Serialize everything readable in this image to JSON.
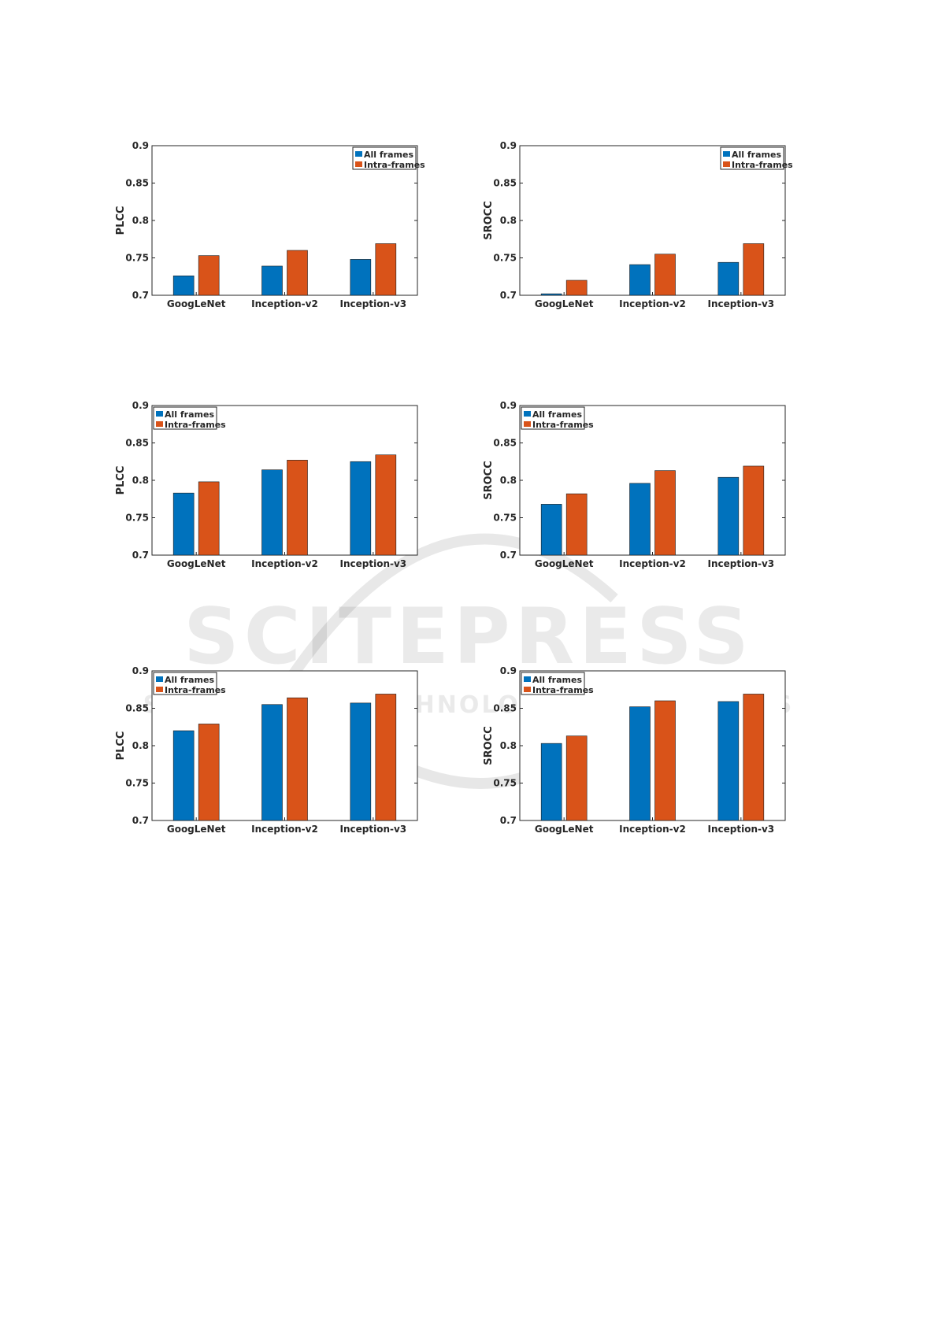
{
  "watermark": {
    "main": "SCITEPRESS",
    "sub": "SCIENCE AND TECHNOLOGY PUBLICATIONS"
  },
  "colors": {
    "all_frames": "#0072BD",
    "intra_frames": "#D95319",
    "axis": "#262626"
  },
  "chart_data": [
    {
      "type": "bar",
      "categories": [
        "GoogLeNet",
        "Inception-v2",
        "Inception-v3"
      ],
      "series": [
        {
          "name": "All frames",
          "values": [
            0.726,
            0.739,
            0.748
          ]
        },
        {
          "name": "Intra-frames",
          "values": [
            0.753,
            0.76,
            0.769
          ]
        }
      ],
      "ylabel": "PLCC",
      "ylim": [
        0.7,
        0.9
      ],
      "yticks": [
        "0.7",
        "0.75",
        "0.8",
        "0.85",
        "0.9"
      ],
      "legend": "top-right"
    },
    {
      "type": "bar",
      "categories": [
        "GoogLeNet",
        "Inception-v2",
        "Inception-v3"
      ],
      "series": [
        {
          "name": "All frames",
          "values": [
            0.702,
            0.741,
            0.744
          ]
        },
        {
          "name": "Intra-frames",
          "values": [
            0.72,
            0.755,
            0.769
          ]
        }
      ],
      "ylabel": "SROCC",
      "ylim": [
        0.7,
        0.9
      ],
      "yticks": [
        "0.7",
        "0.75",
        "0.8",
        "0.85",
        "0.9"
      ],
      "legend": "top-right"
    },
    {
      "type": "bar",
      "categories": [
        "GoogLeNet",
        "Inception-v2",
        "Inception-v3"
      ],
      "series": [
        {
          "name": "All frames",
          "values": [
            0.783,
            0.814,
            0.825
          ]
        },
        {
          "name": "Intra-frames",
          "values": [
            0.798,
            0.827,
            0.834
          ]
        }
      ],
      "ylabel": "PLCC",
      "ylim": [
        0.7,
        0.9
      ],
      "yticks": [
        "0.7",
        "0.75",
        "0.8",
        "0.85",
        "0.9"
      ],
      "legend": "top-left"
    },
    {
      "type": "bar",
      "categories": [
        "GoogLeNet",
        "Inception-v2",
        "Inception-v3"
      ],
      "series": [
        {
          "name": "All frames",
          "values": [
            0.768,
            0.796,
            0.804
          ]
        },
        {
          "name": "Intra-frames",
          "values": [
            0.782,
            0.813,
            0.819
          ]
        }
      ],
      "ylabel": "SROCC",
      "ylim": [
        0.7,
        0.9
      ],
      "yticks": [
        "0.7",
        "0.75",
        "0.8",
        "0.85",
        "0.9"
      ],
      "legend": "top-left"
    },
    {
      "type": "bar",
      "categories": [
        "GoogLeNet",
        "Inception-v2",
        "Inception-v3"
      ],
      "series": [
        {
          "name": "All frames",
          "values": [
            0.82,
            0.855,
            0.857
          ]
        },
        {
          "name": "Intra-frames",
          "values": [
            0.829,
            0.864,
            0.869
          ]
        }
      ],
      "ylabel": "PLCC",
      "ylim": [
        0.7,
        0.9
      ],
      "yticks": [
        "0.7",
        "0.75",
        "0.8",
        "0.85",
        "0.9"
      ],
      "legend": "top-left"
    },
    {
      "type": "bar",
      "categories": [
        "GoogLeNet",
        "Inception-v2",
        "Inception-v3"
      ],
      "series": [
        {
          "name": "All frames",
          "values": [
            0.803,
            0.852,
            0.859
          ]
        },
        {
          "name": "Intra-frames",
          "values": [
            0.813,
            0.86,
            0.869
          ]
        }
      ],
      "ylabel": "SROCC",
      "ylim": [
        0.7,
        0.9
      ],
      "yticks": [
        "0.7",
        "0.75",
        "0.8",
        "0.85",
        "0.9"
      ],
      "legend": "top-left"
    }
  ]
}
